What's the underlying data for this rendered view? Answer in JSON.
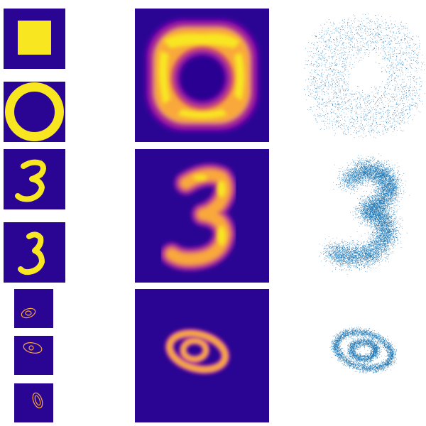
{
  "colors": {
    "background_purple": "#2a0593",
    "yellow": "#f8e621",
    "orange": "#f9a83a",
    "magenta": "#c6417d",
    "scatter_blue": "#1f77b4"
  },
  "rows": [
    {
      "input_shapes": [
        "square",
        "ring"
      ],
      "density_shape": "rounded-ring",
      "samples_shape": "rounded-ring-cloud"
    },
    {
      "input_shapes": [
        "digit-three",
        "digit-three"
      ],
      "density_shape": "digit-three",
      "samples_shape": "digit-three-cloud"
    },
    {
      "input_shapes": [
        "concentric-ellipses",
        "concentric-ellipses",
        "concentric-ellipses"
      ],
      "density_shape": "concentric-ellipses",
      "samples_shape": "concentric-ellipses-cloud"
    }
  ]
}
